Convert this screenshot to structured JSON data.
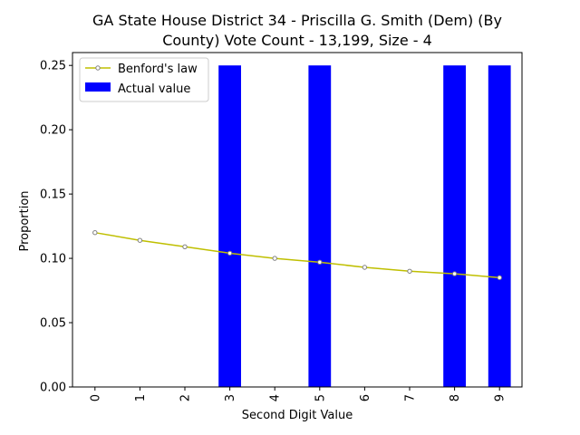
{
  "chart_data": {
    "type": "bar",
    "title_line1": "GA State House District 34 - Priscilla G. Smith (Dem) (By",
    "title_line2": "County) Vote Count - 13,199, Size - 4",
    "xlabel": "Second Digit Value",
    "ylabel": "Proportion",
    "ylim": [
      0,
      0.26
    ],
    "yticks": [
      "0.00",
      "0.05",
      "0.10",
      "0.15",
      "0.20",
      "0.25"
    ],
    "categories": [
      "0",
      "1",
      "2",
      "3",
      "4",
      "5",
      "6",
      "7",
      "8",
      "9"
    ],
    "legend_position": "top-left",
    "grid": false,
    "series": [
      {
        "name": "Benford's law",
        "kind": "line",
        "color": "#bfbf00",
        "marker_color": "#808080",
        "values": [
          0.12,
          0.114,
          0.109,
          0.104,
          0.1,
          0.097,
          0.093,
          0.09,
          0.088,
          0.085
        ]
      },
      {
        "name": "Actual value",
        "kind": "bar",
        "color": "#0000ff",
        "values": [
          0,
          0,
          0,
          0.25,
          0,
          0.25,
          0,
          0,
          0.25,
          0.25
        ]
      }
    ]
  }
}
